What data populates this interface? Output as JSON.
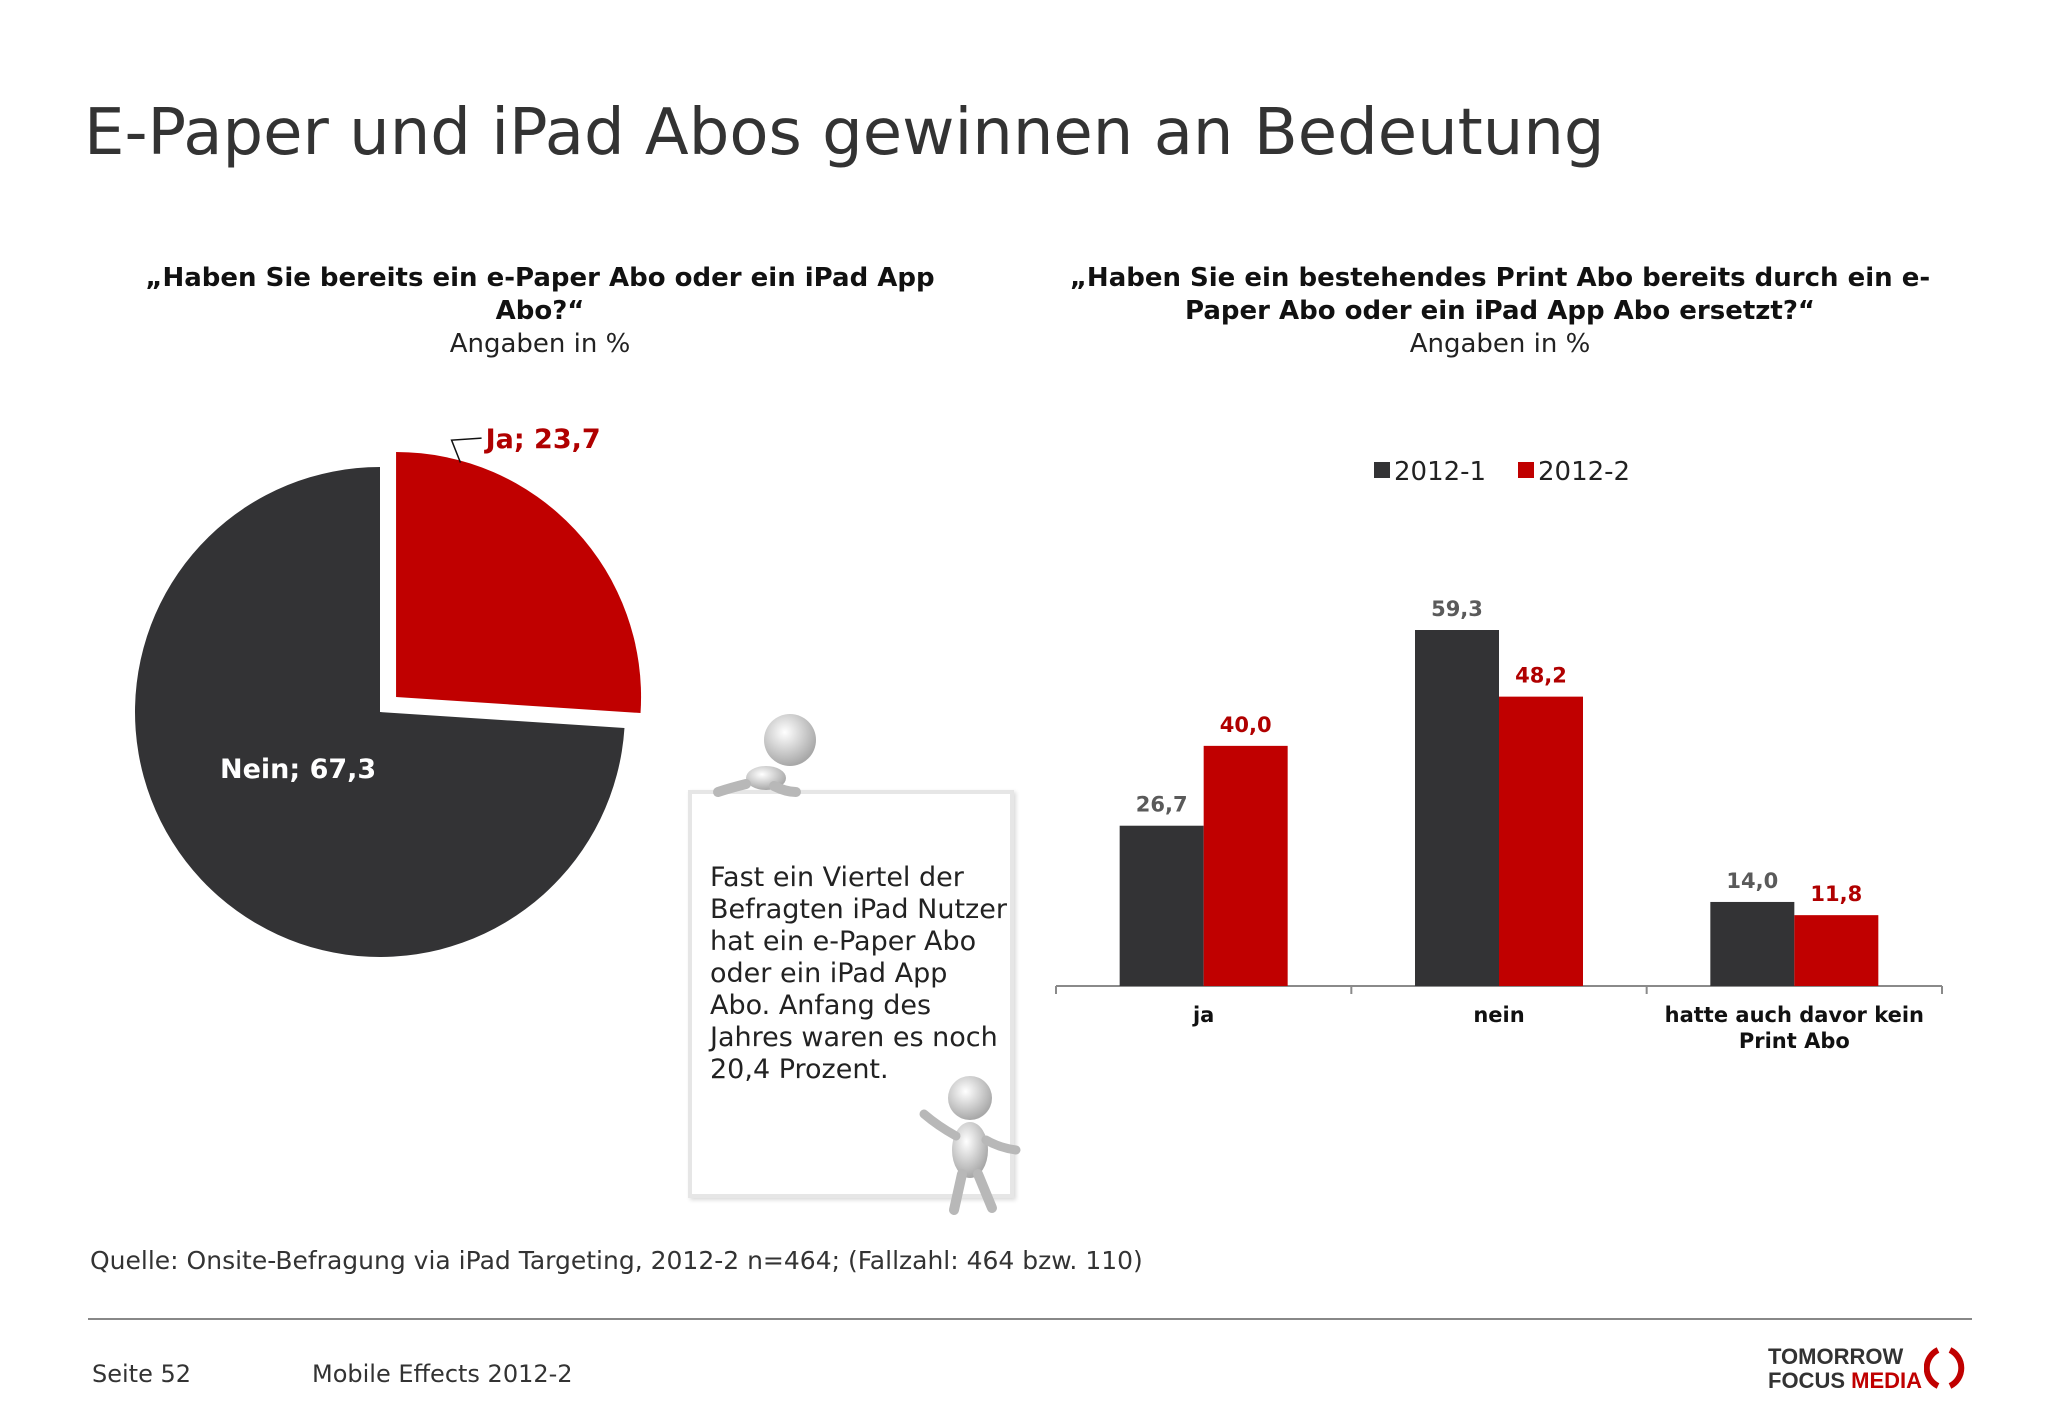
{
  "slide": {
    "title": "E-Paper und iPad Abos gewinnen an Bedeutung",
    "source": "Quelle: Onsite-Befragung via iPad Targeting, 2012-2 n=464; (Fallzahl: 464 bzw. 110)",
    "page": "Seite 52",
    "study": "Mobile Effects 2012-2",
    "logo_line1": "TOMORROW",
    "logo_line2a": "FOCUS ",
    "logo_line2b": "MEDIA",
    "note": "Fast ein Viertel der Befragten iPad Nutzer hat ein e-Paper Abo oder ein iPad App Abo. Anfang des Jahres waren es noch 20,4 Prozent.",
    "colors": {
      "dark": "#333335",
      "red": "#c00000",
      "red_label": "#b00000",
      "gray_label": "#5a5a5a"
    }
  },
  "chart_data": [
    {
      "type": "pie",
      "title": "„Haben Sie bereits ein e-Paper Abo oder ein iPad App Abo?“",
      "subtitle": "Angaben in %",
      "slices": [
        {
          "label": "Ja; 23,7",
          "name": "Ja",
          "value": 23.7,
          "color": "#c00000",
          "exploded": true
        },
        {
          "label": "Nein; 67,3",
          "name": "Nein",
          "value": 67.3,
          "color": "#333335",
          "exploded": false
        }
      ]
    },
    {
      "type": "bar",
      "title": "„Haben Sie ein bestehendes Print Abo bereits durch  ein e-Paper Abo oder ein iPad App Abo ersetzt?“",
      "subtitle": "Angaben in %",
      "categories": [
        "ja",
        "nein",
        "hatte auch davor kein Print Abo"
      ],
      "legend_position": "top-center",
      "series": [
        {
          "name": "2012-1",
          "values": [
            26.7,
            59.3,
            14.0
          ],
          "labels": [
            "26,7",
            "59,3",
            "14,0"
          ],
          "color": "#333335"
        },
        {
          "name": "2012-2",
          "values": [
            40.0,
            48.2,
            11.8
          ],
          "labels": [
            "40,0",
            "48,2",
            "11,8"
          ],
          "color": "#c00000"
        }
      ],
      "ylim": [
        0,
        59.3
      ]
    }
  ]
}
